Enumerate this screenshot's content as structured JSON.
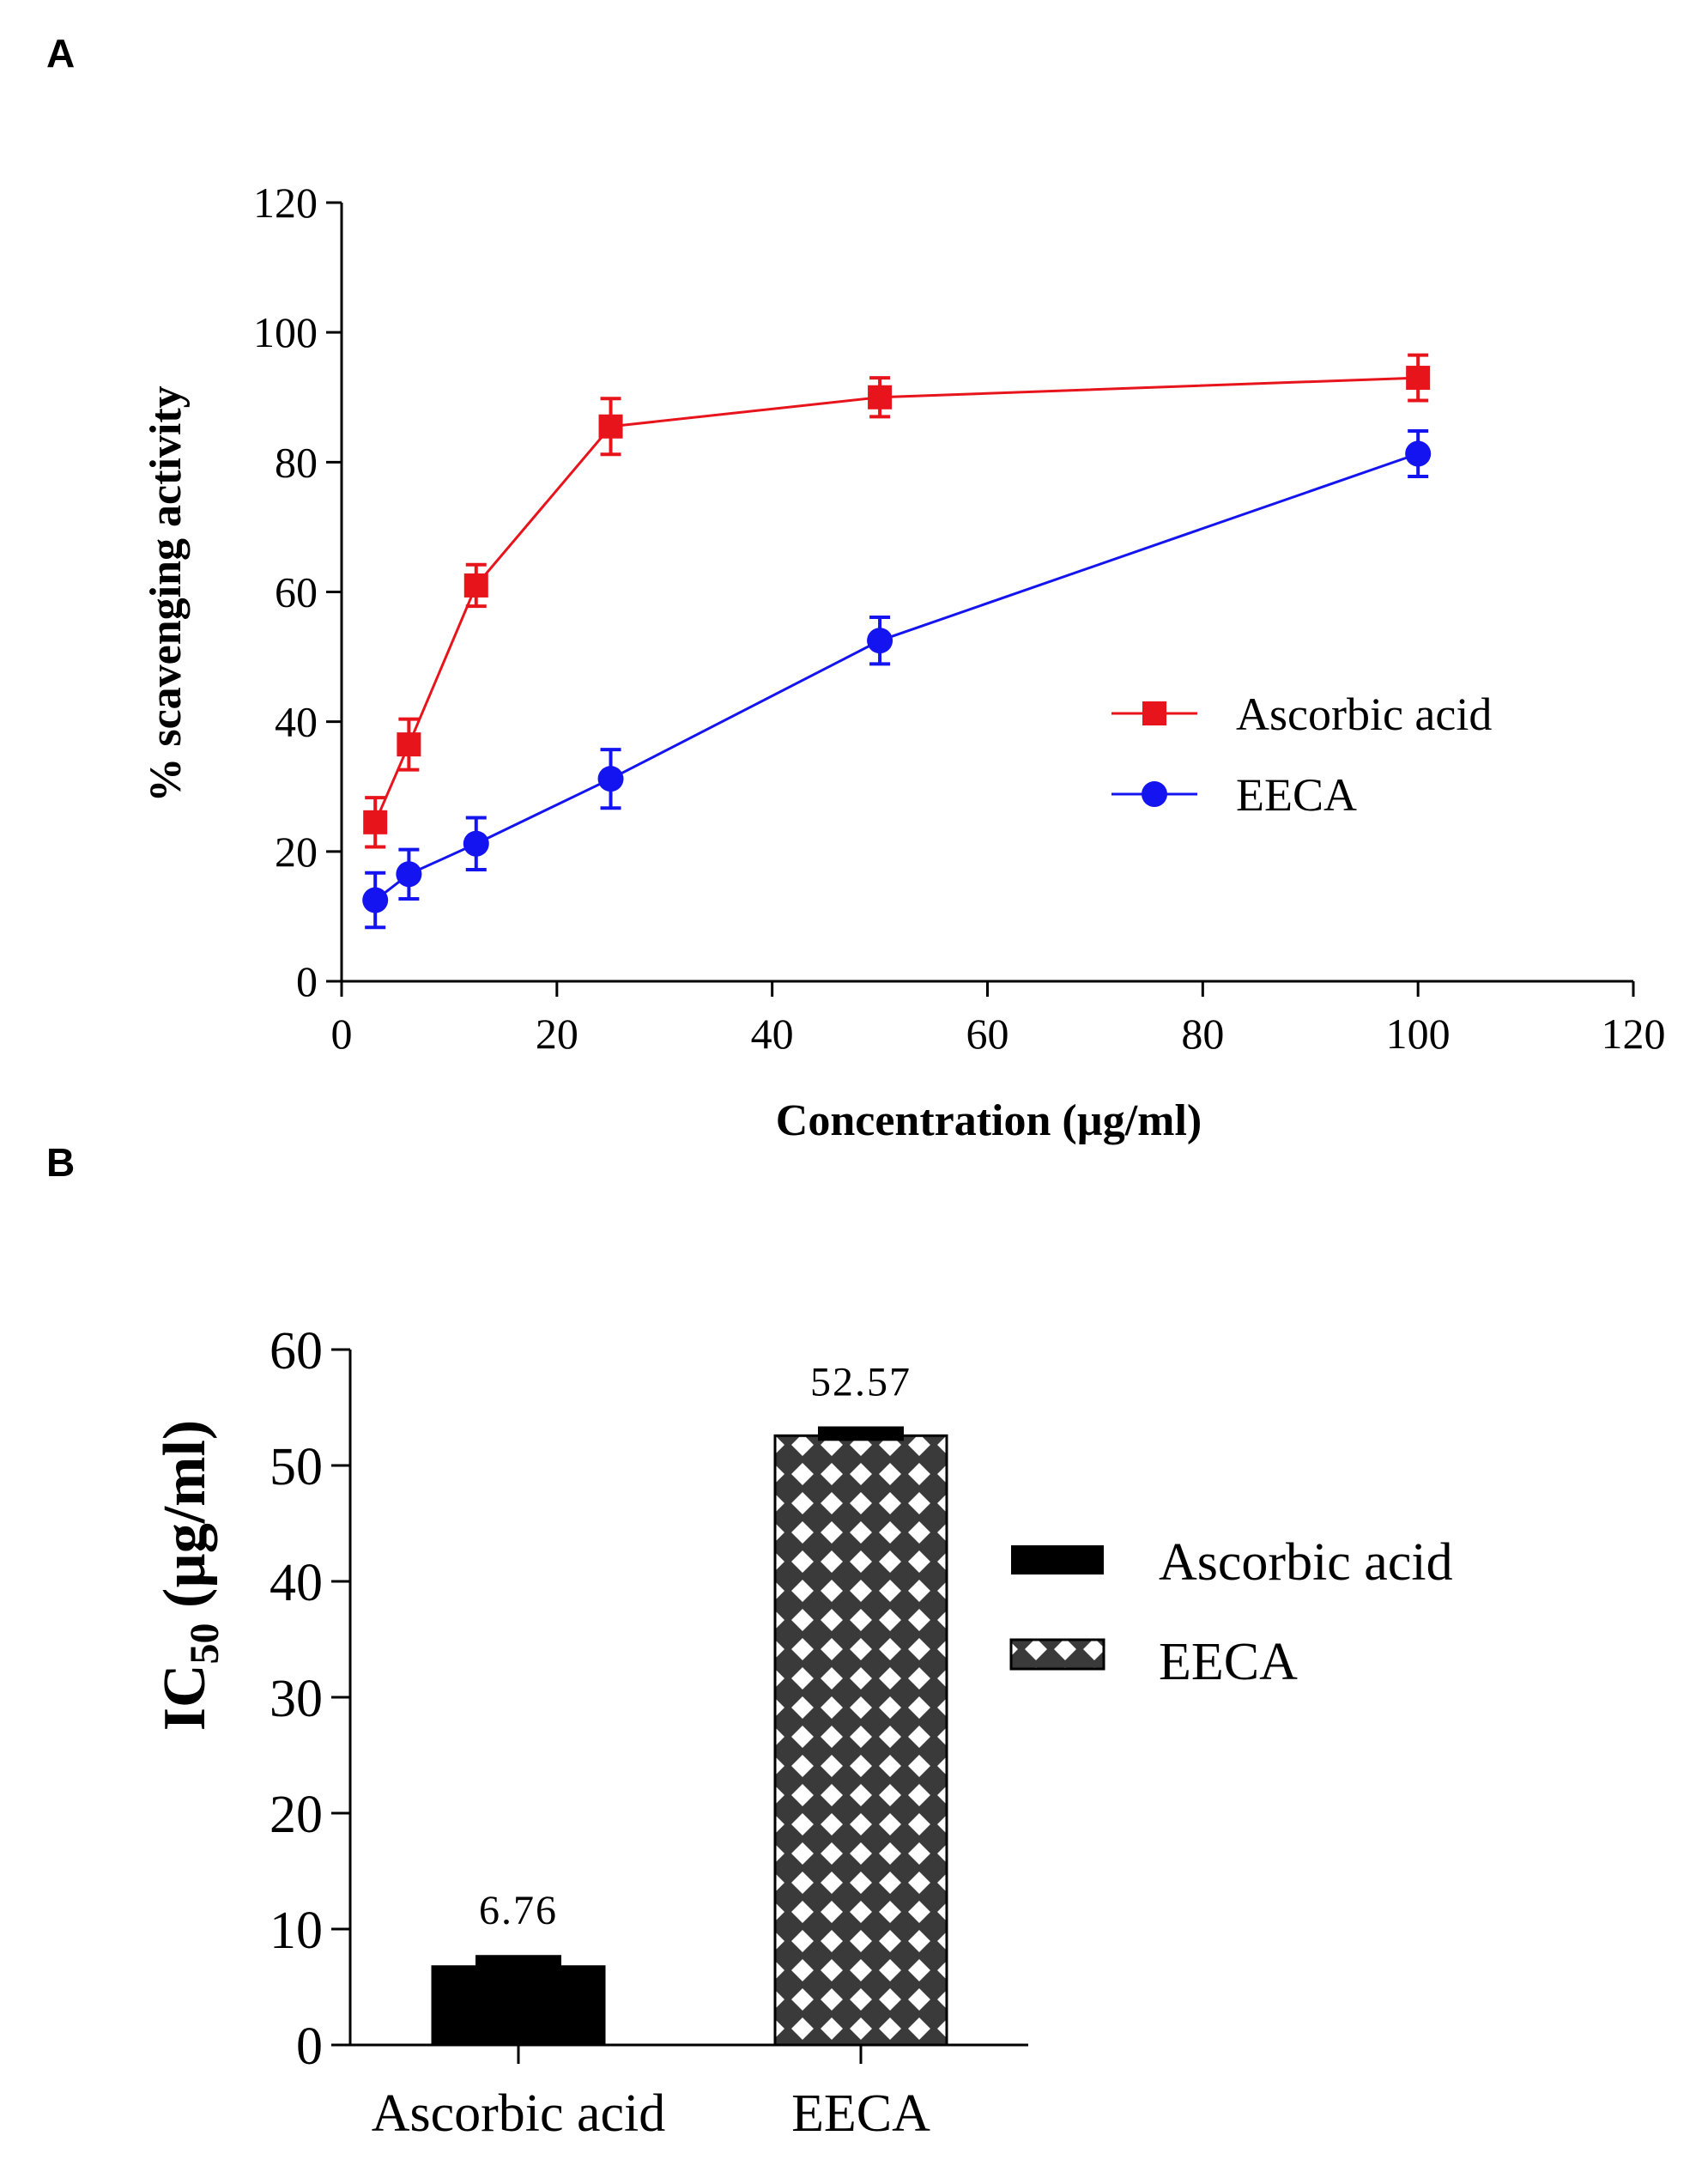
{
  "chart_data": [
    {
      "panel": "A",
      "type": "line",
      "title": "",
      "xlabel": "Concentration (µg/ml)",
      "ylabel": "% scavenging activity",
      "xlim": [
        0,
        120
      ],
      "ylim": [
        0,
        120
      ],
      "xticks": [
        0,
        20,
        40,
        60,
        80,
        100,
        120
      ],
      "yticks": [
        0,
        20,
        40,
        60,
        80,
        100,
        120
      ],
      "legend_position": "right-middle",
      "series": [
        {
          "name": "Ascorbic acid",
          "color": "#e8141c",
          "marker": "square",
          "x": [
            3.125,
            6.25,
            12.5,
            25,
            50,
            100
          ],
          "values": [
            24.5,
            36.5,
            61,
            85.5,
            90,
            93
          ],
          "errors": [
            3.8,
            3.9,
            3.2,
            4.3,
            3.0,
            3.5
          ]
        },
        {
          "name": "EECA",
          "color": "#1414f0",
          "marker": "circle",
          "x": [
            3.125,
            6.25,
            12.5,
            25,
            50,
            100
          ],
          "values": [
            12.5,
            16.5,
            21.2,
            31.2,
            52.5,
            81.3
          ],
          "errors": [
            4.2,
            3.8,
            4.0,
            4.5,
            3.6,
            3.5
          ]
        }
      ]
    },
    {
      "panel": "B",
      "type": "bar",
      "title": "",
      "xlabel": "",
      "ylabel_main": "IC",
      "ylabel_sub": "50",
      "ylabel_rest": " (µg/ml)",
      "ylim": [
        0,
        60
      ],
      "yticks": [
        0,
        10,
        20,
        30,
        40,
        50,
        60
      ],
      "categories": [
        "Ascorbic acid",
        "EECA"
      ],
      "values": [
        6.76,
        52.57
      ],
      "errors": [
        1.0,
        0.8
      ],
      "value_labels": [
        "6.76",
        "52.57"
      ],
      "fills": [
        "solid-black",
        "diamond-lattice"
      ],
      "legend": [
        "Ascorbic acid",
        "EECA"
      ],
      "legend_position": "right-middle"
    }
  ],
  "panels": {
    "a": "A",
    "b": "B"
  }
}
